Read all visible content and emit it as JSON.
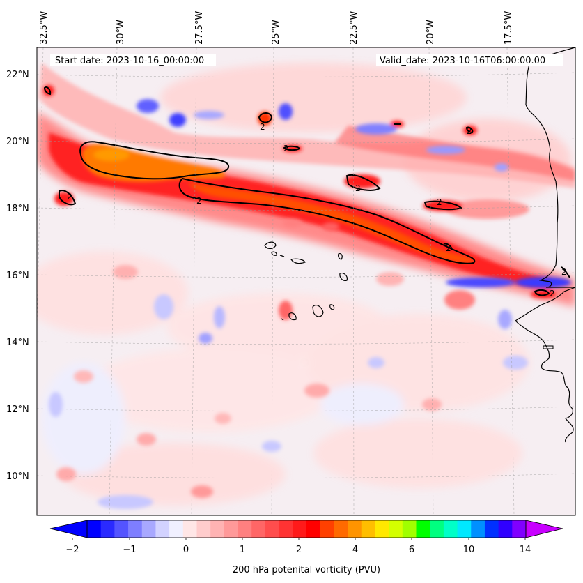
{
  "map": {
    "start_date": "Start date: 2023-10-16_00:00:00",
    "valid_date": "Valid_date: 2023-10-16T06:00:00.00",
    "lon_labels": [
      "32.5°W",
      "30°W",
      "27.5°W",
      "25°W",
      "22.5°W",
      "20°W",
      "17.5°W"
    ],
    "lat_labels": [
      "22°N",
      "20°N",
      "18°N",
      "16°N",
      "14°N",
      "12°N",
      "10°N"
    ],
    "contour_level_label": "2",
    "colors": {
      "positive": "#ff2a2a",
      "core": "#ff8c00",
      "negative": "#3a3aff",
      "background": "#eeeeff"
    }
  },
  "colorbar": {
    "label": "200 hPa potenital vorticity (PVU)",
    "tick_labels": [
      "−2",
      "−1",
      "0",
      "1",
      "2",
      "4",
      "6",
      "10",
      "14"
    ],
    "colors": [
      "#0000ff",
      "#2a2aff",
      "#5454ff",
      "#7e7eff",
      "#a8a8ff",
      "#d2d2ff",
      "#f0f0ff",
      "#ffe6e6",
      "#ffcccc",
      "#ffb3b3",
      "#ff9999",
      "#ff8080",
      "#ff6666",
      "#ff4d4d",
      "#ff3333",
      "#ff1a1a",
      "#ff0000",
      "#ff4000",
      "#ff6a00",
      "#ff9400",
      "#ffbe00",
      "#ffe800",
      "#d4ff00",
      "#a0ff00",
      "#00ff00",
      "#00ff80",
      "#00ffc8",
      "#00e8ff",
      "#0090ff",
      "#0030ff",
      "#3000ff",
      "#8000ff"
    ]
  }
}
